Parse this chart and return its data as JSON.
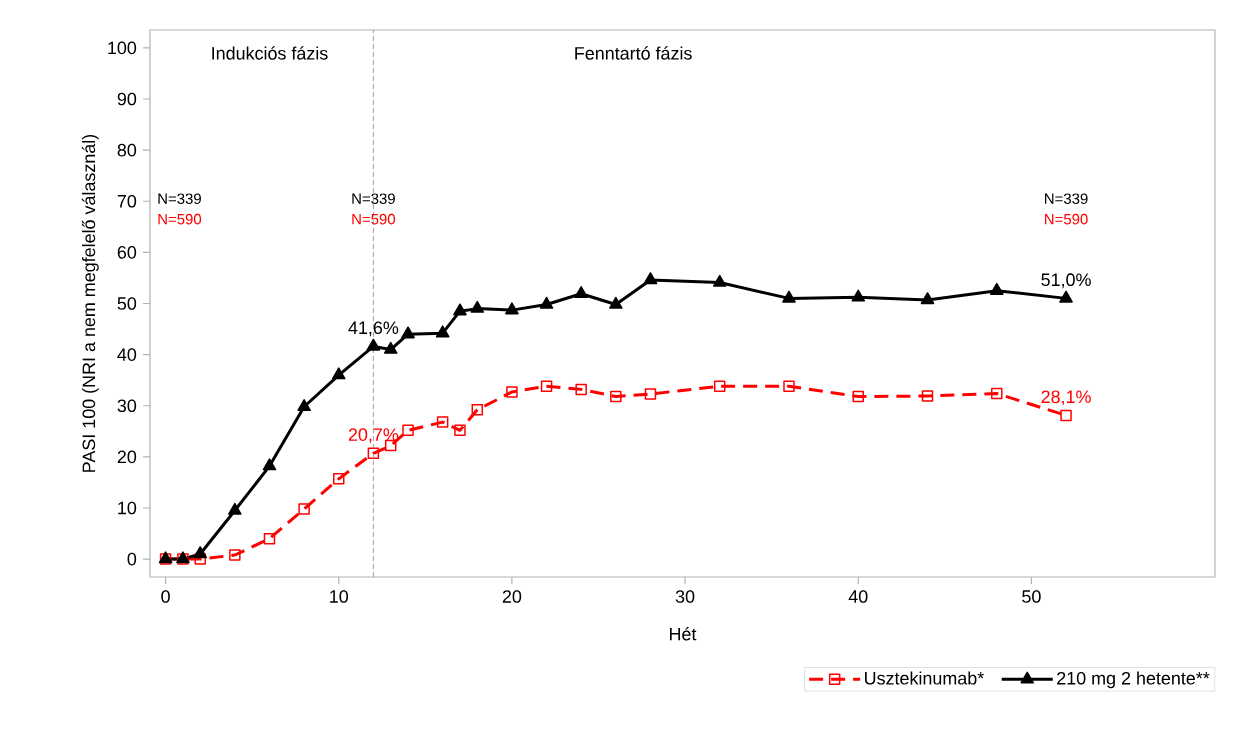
{
  "chart_data": {
    "type": "line",
    "xlabel": "Hét",
    "ylabel": "PASI 100 (NRI a nem megfelelő válasznál)",
    "x": [
      0,
      1,
      2,
      4,
      6,
      8,
      10,
      12,
      13,
      14,
      16,
      17,
      18,
      20,
      22,
      24,
      26,
      28,
      32,
      36,
      40,
      44,
      48,
      52
    ],
    "series": [
      {
        "name": "Usztekinumab*",
        "color": "#ff0000",
        "marker": "square",
        "line_style": "dashed",
        "values": [
          0,
          0,
          0,
          0.8,
          4,
          9.8,
          15.7,
          20.7,
          22.2,
          25.2,
          26.8,
          25.2,
          29.2,
          32.7,
          33.8,
          33.2,
          31.8,
          32.3,
          33.8,
          33.8,
          31.8,
          31.9,
          32.4,
          28.1
        ],
        "value_labels": [
          null,
          null,
          null,
          null,
          null,
          null,
          null,
          "20,7%",
          null,
          null,
          null,
          null,
          null,
          null,
          null,
          null,
          null,
          null,
          null,
          null,
          null,
          null,
          null,
          "28,1%"
        ]
      },
      {
        "name": "210 mg 2 hetente**",
        "color": "#000000",
        "marker": "triangle",
        "line_style": "solid",
        "values": [
          0,
          0,
          1,
          9.5,
          18.2,
          29.8,
          36,
          41.6,
          41,
          44,
          44.2,
          48.5,
          49,
          48.7,
          49.8,
          51.9,
          49.8,
          54.6,
          54.1,
          51,
          51.2,
          50.7,
          52.5,
          51
        ],
        "value_labels": [
          null,
          null,
          null,
          null,
          null,
          null,
          null,
          "41,6%",
          null,
          null,
          null,
          null,
          null,
          null,
          null,
          null,
          null,
          null,
          null,
          null,
          null,
          null,
          null,
          "51,0%"
        ]
      }
    ],
    "xlim": [
      -0.9,
      60.6
    ],
    "ylim": [
      -3.5,
      103.5
    ],
    "xticks": [
      0,
      10,
      20,
      30,
      40,
      50
    ],
    "yticks": [
      0,
      10,
      20,
      30,
      40,
      50,
      60,
      70,
      80,
      90,
      100
    ],
    "ref_lines": [
      {
        "axis": "x",
        "value": 12,
        "label": null,
        "color": "#a0a0a0",
        "line_style": "dashed"
      }
    ],
    "annotations": [
      "Indukciós fázis",
      "Fenntartó fázis",
      "N=339",
      "N=590",
      {
        "text": "N=339",
        "x": 12,
        "y": 70.5
      },
      {
        "text": "N=590",
        "x": 12,
        "y": 66.5
      },
      "N=339",
      "N=590"
    ],
    "grid": false,
    "legend": "bottom"
  }
}
